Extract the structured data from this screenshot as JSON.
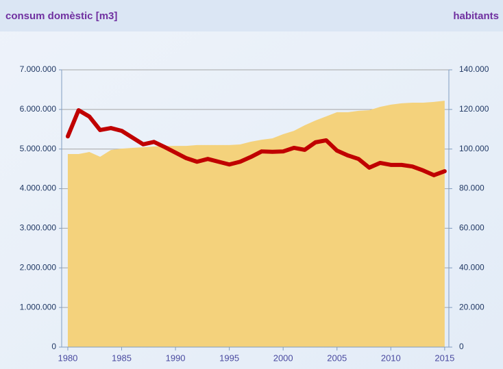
{
  "chart_data": {
    "type": "line",
    "y_label": "consum domèstic [m3]",
    "y2_label": "habitants",
    "x": [
      1980,
      1981,
      1982,
      1983,
      1984,
      1985,
      1986,
      1987,
      1988,
      1989,
      1990,
      1991,
      1992,
      1993,
      1994,
      1995,
      1996,
      1997,
      1998,
      1999,
      2000,
      2001,
      2002,
      2003,
      2004,
      2005,
      2006,
      2007,
      2008,
      2009,
      2010,
      2011,
      2012,
      2013,
      2014,
      2015
    ],
    "series": [
      {
        "type": "line",
        "color": "#c00000",
        "axis": "y",
        "values": [
          5320000,
          5980000,
          5820000,
          5480000,
          5530000,
          5460000,
          5290000,
          5120000,
          5180000,
          5050000,
          4910000,
          4770000,
          4680000,
          4750000,
          4680000,
          4610000,
          4680000,
          4800000,
          4940000,
          4930000,
          4940000,
          5030000,
          4980000,
          5170000,
          5220000,
          4960000,
          4840000,
          4750000,
          4530000,
          4650000,
          4600000,
          4600000,
          4560000,
          4460000,
          4340000,
          4440000
        ]
      },
      {
        "type": "area",
        "color": "#f4d27c",
        "axis": "y2",
        "values": [
          97500,
          97500,
          98500,
          96100,
          99500,
          100200,
          100600,
          100900,
          101300,
          101600,
          101600,
          101600,
          102000,
          102000,
          102000,
          102000,
          102300,
          103700,
          104700,
          105400,
          107500,
          109200,
          112000,
          114400,
          116500,
          118600,
          118600,
          119300,
          119600,
          121300,
          122400,
          123100,
          123400,
          123400,
          123800,
          124400
        ]
      }
    ],
    "xlim": [
      1979.43,
      2015.39
    ],
    "xticks": [
      1980,
      1985,
      1990,
      1995,
      2000,
      2005,
      2010,
      2015
    ],
    "ylim": [
      0,
      7000000
    ],
    "yticks": [
      0,
      {
        "value": 1000000,
        "label": "1.000.000"
      },
      {
        "value": 2000000,
        "label": "2.000.000"
      },
      {
        "value": 3000000,
        "label": "3.000.000"
      },
      {
        "value": 4000000,
        "label": "4.000.000"
      },
      {
        "value": 5000000,
        "label": "5.000.000"
      },
      {
        "value": 6000000,
        "label": "6.000.000"
      },
      {
        "value": 7000000,
        "label": "7.000.000"
      }
    ],
    "y2lim": [
      0,
      140000
    ],
    "y2ticks": [
      0,
      {
        "value": 20000,
        "label": "20.000"
      },
      {
        "value": 40000,
        "label": "40.000"
      },
      {
        "value": 60000,
        "label": "60.000"
      },
      {
        "value": 80000,
        "label": "80.000"
      },
      {
        "value": 100000,
        "label": "100.000"
      },
      {
        "value": 120000,
        "label": "120.000"
      },
      {
        "value": 140000,
        "label": "140.000"
      }
    ],
    "grid": true
  }
}
